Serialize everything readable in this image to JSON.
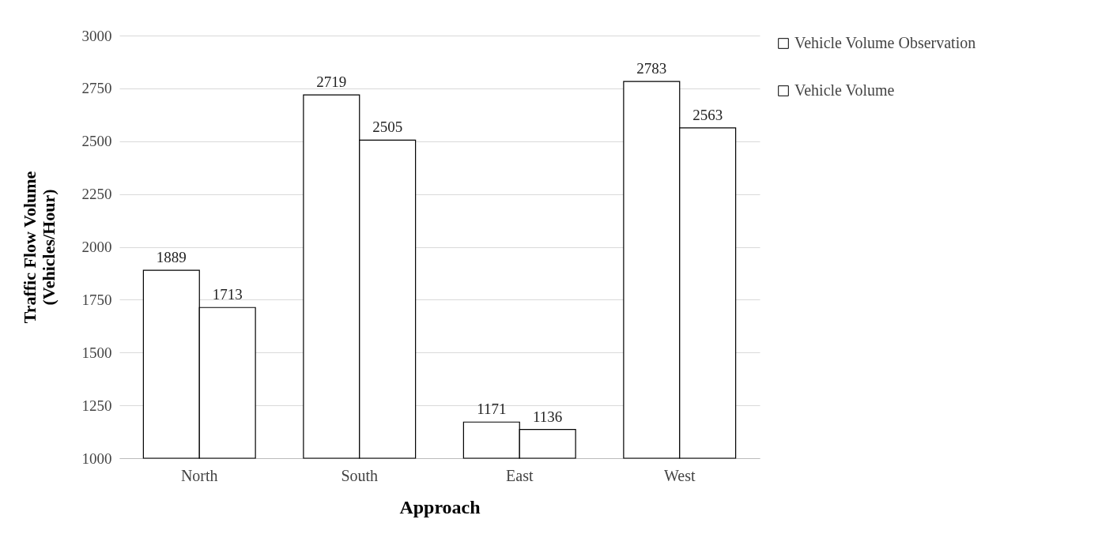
{
  "chart_data": {
    "type": "bar",
    "xlabel": "Approach",
    "ylabel": "Traffic Flow Volume\n(Vehicles/Hour)",
    "categories": [
      "North",
      "South",
      "East",
      "West"
    ],
    "series": [
      {
        "name": "Vehicle Volume Observation",
        "color": "#ffffff",
        "values": [
          1889,
          2719,
          1171,
          2783
        ]
      },
      {
        "name": "Vehicle Volume",
        "color": "#ffffff",
        "values": [
          1713,
          2505,
          1136,
          2563
        ]
      }
    ],
    "ylim": [
      1000,
      3000
    ],
    "yticks": [
      1000,
      1250,
      1500,
      1750,
      2000,
      2250,
      2500,
      2750,
      3000
    ],
    "grid": "y",
    "legend": "right",
    "data_labels": true
  }
}
